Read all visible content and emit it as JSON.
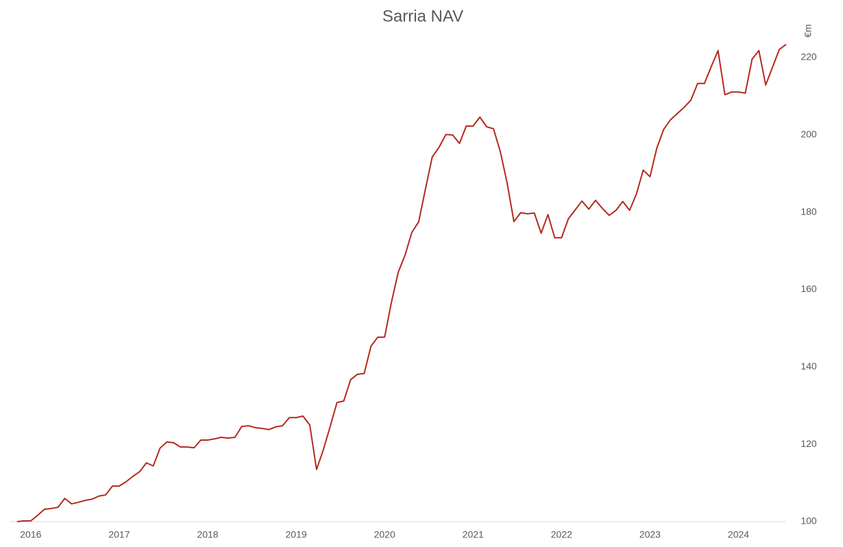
{
  "chart_data": {
    "type": "line",
    "title": "Sarria NAV",
    "y_label": "€m",
    "y_axis_position": "right",
    "categories": [
      null,
      null,
      "2016",
      null,
      null,
      null,
      null,
      null,
      null,
      null,
      null,
      null,
      null,
      null,
      null,
      "2017",
      null,
      null,
      null,
      null,
      null,
      null,
      null,
      null,
      null,
      null,
      null,
      null,
      "2018",
      null,
      null,
      null,
      null,
      null,
      null,
      null,
      null,
      null,
      null,
      null,
      null,
      "2019",
      null,
      null,
      null,
      null,
      null,
      null,
      null,
      null,
      null,
      null,
      null,
      null,
      "2020",
      null,
      null,
      null,
      null,
      null,
      null,
      null,
      null,
      null,
      null,
      null,
      null,
      "2021",
      null,
      null,
      null,
      null,
      null,
      null,
      null,
      null,
      null,
      null,
      null,
      null,
      "2022",
      null,
      null,
      null,
      null,
      null,
      null,
      null,
      null,
      null,
      null,
      null,
      null,
      "2023",
      null,
      null,
      null,
      null,
      null,
      null,
      null,
      null,
      null,
      null,
      null,
      null,
      "2024",
      null,
      null,
      null,
      null,
      null,
      null,
      null
    ],
    "series": [
      {
        "name": "Sarria NAV",
        "color": "#b5281c",
        "values": [
          100,
          100.2,
          100.2,
          101.6,
          103.2,
          103.4,
          103.7,
          106.0,
          104.6,
          105.0,
          105.5,
          105.8,
          106.6,
          106.9,
          109.2,
          109.2,
          110.3,
          111.7,
          112.9,
          115.2,
          114.4,
          119.0,
          120.6,
          120.4,
          119.3,
          119.3,
          119.1,
          121.1,
          121.1,
          121.4,
          121.8,
          121.6,
          121.8,
          124.6,
          124.8,
          124.3,
          124.1,
          123.8,
          124.5,
          124.8,
          126.9,
          126.9,
          127.3,
          125.0,
          113.5,
          118.6,
          124.6,
          130.8,
          131.2,
          136.7,
          138.1,
          138.3,
          145.4,
          147.7,
          147.7,
          156.7,
          164.5,
          168.9,
          174.8,
          177.5,
          186.0,
          194.3,
          196.8,
          200.1,
          200.0,
          197.8,
          202.3,
          202.3,
          204.6,
          202.1,
          201.6,
          195.7,
          187.6,
          177.6,
          179.9,
          179.6,
          179.8,
          174.6,
          179.4,
          173.4,
          173.4,
          178.3,
          180.6,
          182.9,
          180.8,
          183.1,
          181.0,
          179.2,
          180.5,
          182.8,
          180.5,
          184.7,
          190.9,
          189.2,
          196.6,
          201.4,
          203.9,
          205.5,
          207.1,
          209.0,
          213.3,
          213.3,
          217.7,
          221.8,
          210.4,
          211.1,
          211.1,
          210.8,
          219.6,
          221.8,
          212.9,
          217.5,
          222.1,
          223.4
        ]
      }
    ],
    "ylim": [
      100,
      220
    ],
    "yticks": [
      100,
      120,
      140,
      160,
      180,
      200,
      220
    ],
    "grid": false
  }
}
